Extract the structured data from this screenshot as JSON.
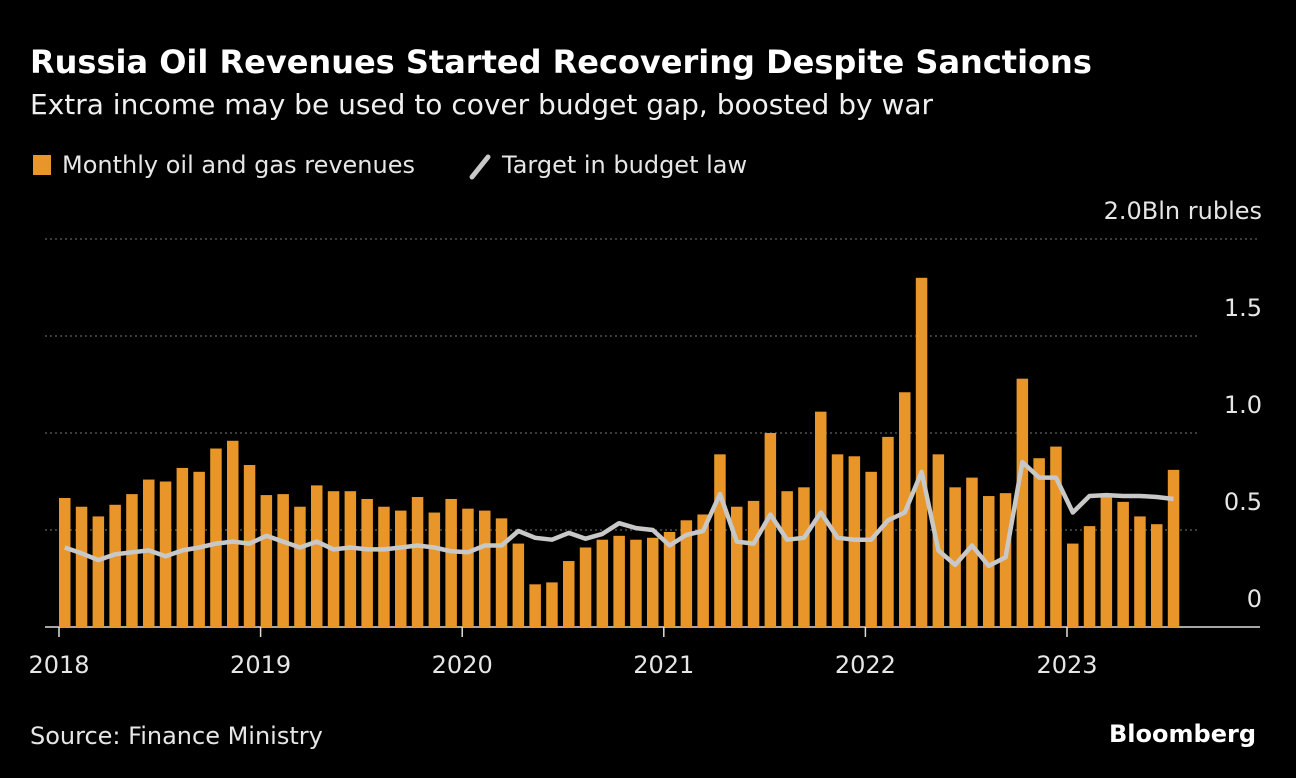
{
  "chart_data": {
    "type": "bar",
    "title": "Russia Oil Revenues Started Recovering Despite Sanctions",
    "subtitle": "Extra income may be used to cover budget gap, boosted by war",
    "source": "Source: Finance Ministry",
    "brand": "Bloomberg",
    "categories": [
      "2018",
      null,
      null,
      null,
      null,
      null,
      null,
      null,
      null,
      null,
      null,
      null,
      "2019",
      null,
      null,
      null,
      null,
      null,
      null,
      null,
      null,
      null,
      null,
      null,
      "2020",
      null,
      null,
      null,
      null,
      null,
      null,
      null,
      null,
      null,
      null,
      null,
      "2021",
      null,
      null,
      null,
      null,
      null,
      null,
      null,
      null,
      null,
      null,
      null,
      "2022",
      null,
      null,
      null,
      null,
      null,
      null,
      null,
      null,
      null,
      null,
      null,
      "2023",
      null,
      null,
      null,
      null,
      null,
      null
    ],
    "series": [
      {
        "name": "Monthly oil and gas revenues",
        "type": "bar",
        "color": "#e8952a",
        "values": [
          0.665,
          0.62,
          0.57,
          0.63,
          0.685,
          0.76,
          0.75,
          0.82,
          0.8,
          0.92,
          0.96,
          0.835,
          0.68,
          0.685,
          0.62,
          0.73,
          0.7,
          0.7,
          0.66,
          0.62,
          0.6,
          0.67,
          0.59,
          0.66,
          0.61,
          0.6,
          0.56,
          0.43,
          0.22,
          0.23,
          0.34,
          0.41,
          0.45,
          0.47,
          0.45,
          0.46,
          0.49,
          0.55,
          0.58,
          0.89,
          0.62,
          0.65,
          1.0,
          0.7,
          0.72,
          1.11,
          0.89,
          0.88,
          0.8,
          0.98,
          1.21,
          1.8,
          0.89,
          0.72,
          0.77,
          0.675,
          0.69,
          1.28,
          0.87,
          0.93,
          0.43,
          0.52,
          0.67,
          0.645,
          0.57,
          0.53,
          0.81
        ]
      },
      {
        "name": "Target in budget law",
        "type": "line",
        "color": "#c8c8c8",
        "values": [
          0.41,
          0.38,
          0.345,
          0.375,
          0.385,
          0.395,
          0.365,
          0.395,
          0.41,
          0.43,
          0.44,
          0.43,
          0.47,
          0.44,
          0.41,
          0.44,
          0.4,
          0.41,
          0.4,
          0.4,
          0.41,
          0.42,
          0.41,
          0.39,
          0.385,
          0.42,
          0.42,
          0.495,
          0.46,
          0.45,
          0.485,
          0.455,
          0.48,
          0.535,
          0.51,
          0.5,
          0.42,
          0.475,
          0.495,
          0.685,
          0.44,
          0.43,
          0.58,
          0.45,
          0.46,
          0.59,
          0.46,
          0.45,
          0.45,
          0.55,
          0.59,
          0.8,
          0.395,
          0.32,
          0.42,
          0.315,
          0.36,
          0.85,
          0.77,
          0.77,
          0.59,
          0.675,
          0.68,
          0.675,
          0.675,
          0.67,
          0.66
        ]
      }
    ],
    "ylim": [
      0,
      2
    ],
    "yticks": [
      0,
      0.5,
      {
        "value": 1,
        "label": "1.0"
      },
      1.5,
      {
        "value": 2,
        "label": "2.0Bln rubles"
      }
    ],
    "grid": true
  }
}
